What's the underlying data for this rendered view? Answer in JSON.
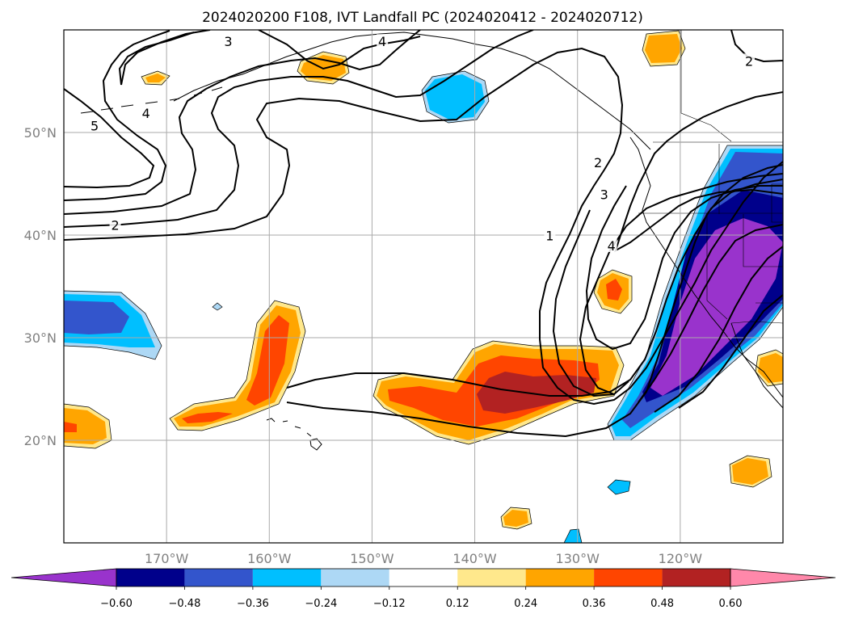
{
  "title": "2024020200 F108, IVT Landfall PC (2024020412 - 2024020712)",
  "map": {
    "lon_range": [
      -180,
      -110
    ],
    "lat_range": [
      10,
      60
    ],
    "lon_ticks": [
      {
        "value": -170,
        "label": "170°W"
      },
      {
        "value": -160,
        "label": "160°W"
      },
      {
        "value": -150,
        "label": "150°W"
      },
      {
        "value": -140,
        "label": "140°W"
      },
      {
        "value": -130,
        "label": "130°W"
      },
      {
        "value": -120,
        "label": "120°W"
      }
    ],
    "lat_ticks": [
      {
        "value": 20,
        "label": "20°N"
      },
      {
        "value": 30,
        "label": "30°N"
      },
      {
        "value": 40,
        "label": "40°N"
      },
      {
        "value": 50,
        "label": "50°N"
      }
    ],
    "grid": true,
    "contour_labels": [
      {
        "text": "3",
        "lon": -164,
        "lat": 58.8
      },
      {
        "text": "4",
        "lon": -149,
        "lat": 58.8
      },
      {
        "text": "4",
        "lon": -172,
        "lat": 51.8
      },
      {
        "text": "5",
        "lon": -177,
        "lat": 50.6
      },
      {
        "text": "2",
        "lon": -175,
        "lat": 40.9
      },
      {
        "text": "2",
        "lon": -113.3,
        "lat": 56.9
      },
      {
        "text": "2",
        "lon": -128,
        "lat": 47.0
      },
      {
        "text": "3",
        "lon": -127.4,
        "lat": 43.9
      },
      {
        "text": "1",
        "lon": -132.7,
        "lat": 39.9
      },
      {
        "text": "4",
        "lon": -126.7,
        "lat": 38.9
      }
    ]
  },
  "colorbar": {
    "tick_labels": [
      "−0.60",
      "−0.48",
      "−0.36",
      "−0.24",
      "−0.12",
      "0.12",
      "0.24",
      "0.36",
      "0.48",
      "0.60"
    ],
    "colors": [
      "#9933cc",
      "#00008b",
      "#3355cc",
      "#00bfff",
      "#add8f5",
      "#ffffff",
      "#ffe88c",
      "#ffa500",
      "#ff4500",
      "#b22222",
      "#ff88aa"
    ],
    "extend": "both"
  }
}
